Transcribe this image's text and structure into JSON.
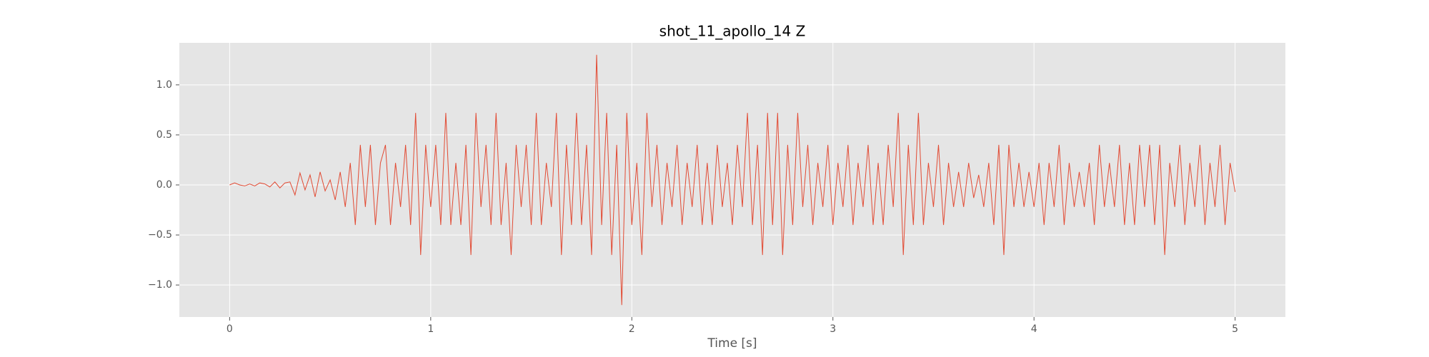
{
  "chart_data": {
    "type": "line",
    "title": "shot_11_apollo_14 Z",
    "x_label": "Time [s]",
    "color": "#E24A33",
    "grid": true,
    "xlim": [
      -0.25,
      5.25
    ],
    "ylim": [
      -1.32,
      1.42
    ],
    "xticks": [
      0,
      1,
      2,
      3,
      4,
      5
    ],
    "yticks": [
      {
        "value": -1.0,
        "label": "−1.0"
      },
      {
        "value": -0.5,
        "label": "−0.5"
      },
      {
        "value": 0.0,
        "label": "0.0"
      },
      {
        "value": 0.5,
        "label": "0.5"
      },
      {
        "value": 1.0,
        "label": "1.0"
      }
    ],
    "x": [
      0,
      0.025,
      0.05,
      0.075,
      0.1,
      0.125,
      0.15,
      0.175,
      0.2,
      0.225,
      0.25,
      0.275,
      0.3,
      0.325,
      0.35,
      0.375,
      0.4,
      0.425,
      0.45,
      0.475,
      0.5,
      0.525,
      0.55,
      0.575,
      0.6,
      0.625,
      0.65,
      0.675,
      0.7,
      0.725,
      0.75,
      0.775,
      0.8,
      0.825,
      0.85,
      0.875,
      0.9,
      0.925,
      0.95,
      0.975,
      1,
      1.025,
      1.05,
      1.075,
      1.1,
      1.125,
      1.15,
      1.175,
      1.2,
      1.225,
      1.25,
      1.275,
      1.3,
      1.325,
      1.35,
      1.375,
      1.4,
      1.425,
      1.45,
      1.475,
      1.5,
      1.525,
      1.55,
      1.575,
      1.6,
      1.625,
      1.65,
      1.675,
      1.7,
      1.725,
      1.75,
      1.775,
      1.8,
      1.825,
      1.85,
      1.875,
      1.9,
      1.925,
      1.95,
      1.975,
      2,
      2.025,
      2.05,
      2.075,
      2.1,
      2.125,
      2.15,
      2.175,
      2.2,
      2.225,
      2.25,
      2.275,
      2.3,
      2.325,
      2.35,
      2.375,
      2.4,
      2.425,
      2.45,
      2.475,
      2.5,
      2.525,
      2.55,
      2.575,
      2.6,
      2.625,
      2.65,
      2.675,
      2.7,
      2.725,
      2.75,
      2.775,
      2.8,
      2.825,
      2.85,
      2.875,
      2.9,
      2.925,
      2.95,
      2.975,
      3,
      3.025,
      3.05,
      3.075,
      3.1,
      3.125,
      3.15,
      3.175,
      3.2,
      3.225,
      3.25,
      3.275,
      3.3,
      3.325,
      3.35,
      3.375,
      3.4,
      3.425,
      3.45,
      3.475,
      3.5,
      3.525,
      3.55,
      3.575,
      3.6,
      3.625,
      3.65,
      3.675,
      3.7,
      3.725,
      3.75,
      3.775,
      3.8,
      3.825,
      3.85,
      3.875,
      3.9,
      3.925,
      3.95,
      3.975,
      4,
      4.025,
      4.05,
      4.075,
      4.1,
      4.125,
      4.15,
      4.175,
      4.2,
      4.225,
      4.25,
      4.275,
      4.3,
      4.325,
      4.35,
      4.375,
      4.4,
      4.425,
      4.45,
      4.475,
      4.5,
      4.525,
      4.55,
      4.575,
      4.6,
      4.625,
      4.65,
      4.675,
      4.7,
      4.725,
      4.75,
      4.775,
      4.8,
      4.825,
      4.85,
      4.875,
      4.9,
      4.925,
      4.95,
      4.975,
      5
    ],
    "values": [
      0,
      0.02,
      0,
      -0.01,
      0.01,
      -0.01,
      0.02,
      0.01,
      -0.02,
      0.03,
      -0.03,
      0.02,
      0.03,
      -0.1,
      0.12,
      -0.05,
      0.1,
      -0.12,
      0.13,
      -0.06,
      0.05,
      -0.15,
      0.13,
      -0.22,
      0.22,
      -0.4,
      0.4,
      -0.22,
      0.4,
      -0.4,
      0.22,
      0.4,
      -0.4,
      0.22,
      -0.22,
      0.4,
      -0.4,
      0.72,
      -0.7,
      0.4,
      -0.22,
      0.4,
      -0.4,
      0.72,
      -0.4,
      0.22,
      -0.4,
      0.4,
      -0.7,
      0.72,
      -0.22,
      0.4,
      -0.4,
      0.72,
      -0.4,
      0.22,
      -0.7,
      0.4,
      -0.22,
      0.4,
      -0.4,
      0.72,
      -0.4,
      0.22,
      -0.22,
      0.72,
      -0.7,
      0.4,
      -0.4,
      0.72,
      -0.4,
      0.4,
      -0.7,
      1.3,
      -0.4,
      0.72,
      -0.7,
      0.4,
      -1.2,
      0.72,
      -0.4,
      0.22,
      -0.7,
      0.72,
      -0.22,
      0.4,
      -0.4,
      0.22,
      -0.22,
      0.4,
      -0.4,
      0.22,
      -0.22,
      0.4,
      -0.4,
      0.22,
      -0.4,
      0.4,
      -0.22,
      0.22,
      -0.4,
      0.4,
      -0.22,
      0.72,
      -0.4,
      0.4,
      -0.7,
      0.72,
      -0.4,
      0.72,
      -0.7,
      0.4,
      -0.4,
      0.72,
      -0.22,
      0.4,
      -0.4,
      0.22,
      -0.22,
      0.4,
      -0.4,
      0.22,
      -0.22,
      0.4,
      -0.4,
      0.22,
      -0.22,
      0.4,
      -0.4,
      0.22,
      -0.4,
      0.4,
      -0.22,
      0.72,
      -0.7,
      0.4,
      -0.4,
      0.72,
      -0.4,
      0.22,
      -0.22,
      0.4,
      -0.4,
      0.22,
      -0.22,
      0.13,
      -0.22,
      0.22,
      -0.13,
      0.1,
      -0.22,
      0.22,
      -0.4,
      0.4,
      -0.7,
      0.4,
      -0.22,
      0.22,
      -0.22,
      0.13,
      -0.22,
      0.22,
      -0.4,
      0.22,
      -0.22,
      0.4,
      -0.4,
      0.22,
      -0.22,
      0.13,
      -0.22,
      0.22,
      -0.4,
      0.4,
      -0.22,
      0.22,
      -0.22,
      0.4,
      -0.4,
      0.22,
      -0.4,
      0.4,
      -0.22,
      0.4,
      -0.4,
      0.4,
      -0.7,
      0.22,
      -0.22,
      0.4,
      -0.4,
      0.22,
      -0.22,
      0.4,
      -0.4,
      0.22,
      -0.22,
      0.4,
      -0.4,
      0.22,
      -0.07
    ]
  }
}
